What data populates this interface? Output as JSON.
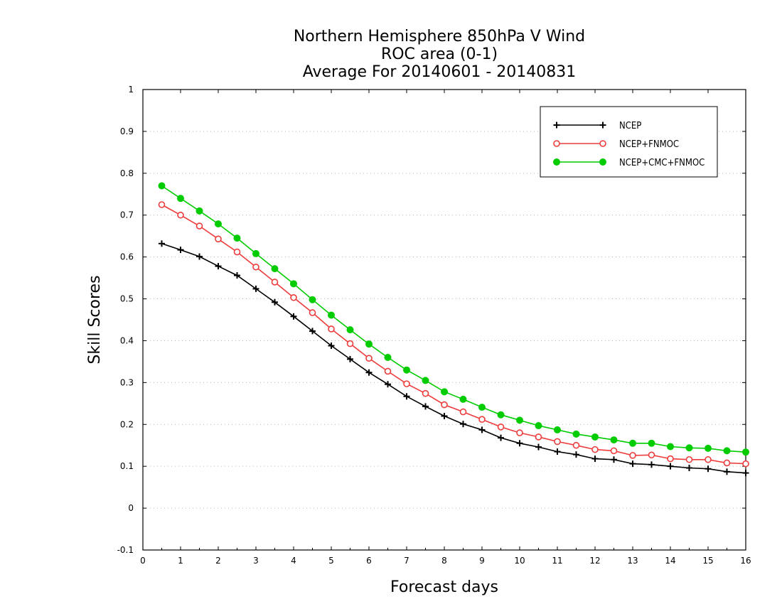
{
  "chart_data": {
    "type": "line",
    "title": [
      "Northern Hemisphere 850hPa V Wind",
      "ROC area (0-1)",
      "Average For 20140601 - 20140831"
    ],
    "xlabel": "Forecast days",
    "ylabel": "Skill Scores",
    "xlim": [
      0,
      16
    ],
    "ylim": [
      -0.1,
      1
    ],
    "xticks": [
      "0",
      "1",
      "2",
      "3",
      "4",
      "5",
      "6",
      "7",
      "8",
      "9",
      "10",
      "11",
      "12",
      "13",
      "14",
      "15",
      "16"
    ],
    "yticks": [
      "-0.1",
      "0",
      "0.1",
      "0.2",
      "0.3",
      "0.4",
      "0.5",
      "0.6",
      "0.7",
      "0.8",
      "0.9",
      "1"
    ],
    "grid": true,
    "legend_position": "top-right",
    "x": [
      0.5,
      1,
      1.5,
      2,
      2.5,
      3,
      3.5,
      4,
      4.5,
      5,
      5.5,
      6,
      6.5,
      7,
      7.5,
      8,
      8.5,
      9,
      9.5,
      10,
      10.5,
      11,
      11.5,
      12,
      12.5,
      13,
      13.5,
      14,
      14.5,
      15,
      15.5,
      16
    ],
    "series": [
      {
        "name": "NCEP",
        "color": "#000000",
        "marker": "plus",
        "values": [
          0.632,
          0.617,
          0.601,
          0.578,
          0.556,
          0.524,
          0.492,
          0.458,
          0.423,
          0.388,
          0.356,
          0.324,
          0.296,
          0.267,
          0.243,
          0.22,
          0.201,
          0.187,
          0.168,
          0.155,
          0.146,
          0.135,
          0.128,
          0.118,
          0.116,
          0.106,
          0.104,
          0.1,
          0.096,
          0.094,
          0.087,
          0.084
        ]
      },
      {
        "name": "NCEP+FNMOC",
        "color": "#ee3b3b",
        "marker": "open-circle",
        "values": [
          0.725,
          0.7,
          0.674,
          0.643,
          0.612,
          0.576,
          0.54,
          0.503,
          0.467,
          0.428,
          0.393,
          0.358,
          0.327,
          0.297,
          0.274,
          0.247,
          0.23,
          0.212,
          0.194,
          0.18,
          0.17,
          0.159,
          0.15,
          0.14,
          0.137,
          0.126,
          0.127,
          0.118,
          0.116,
          0.116,
          0.108,
          0.106
        ]
      },
      {
        "name": "NCEP+CMC+FNMOC",
        "color": "#00cc00",
        "marker": "filled-circle",
        "values": [
          0.77,
          0.74,
          0.71,
          0.679,
          0.645,
          0.608,
          0.572,
          0.536,
          0.498,
          0.461,
          0.426,
          0.392,
          0.36,
          0.33,
          0.305,
          0.278,
          0.26,
          0.241,
          0.223,
          0.21,
          0.197,
          0.187,
          0.177,
          0.17,
          0.163,
          0.155,
          0.155,
          0.147,
          0.144,
          0.143,
          0.137,
          0.134
        ]
      }
    ]
  }
}
